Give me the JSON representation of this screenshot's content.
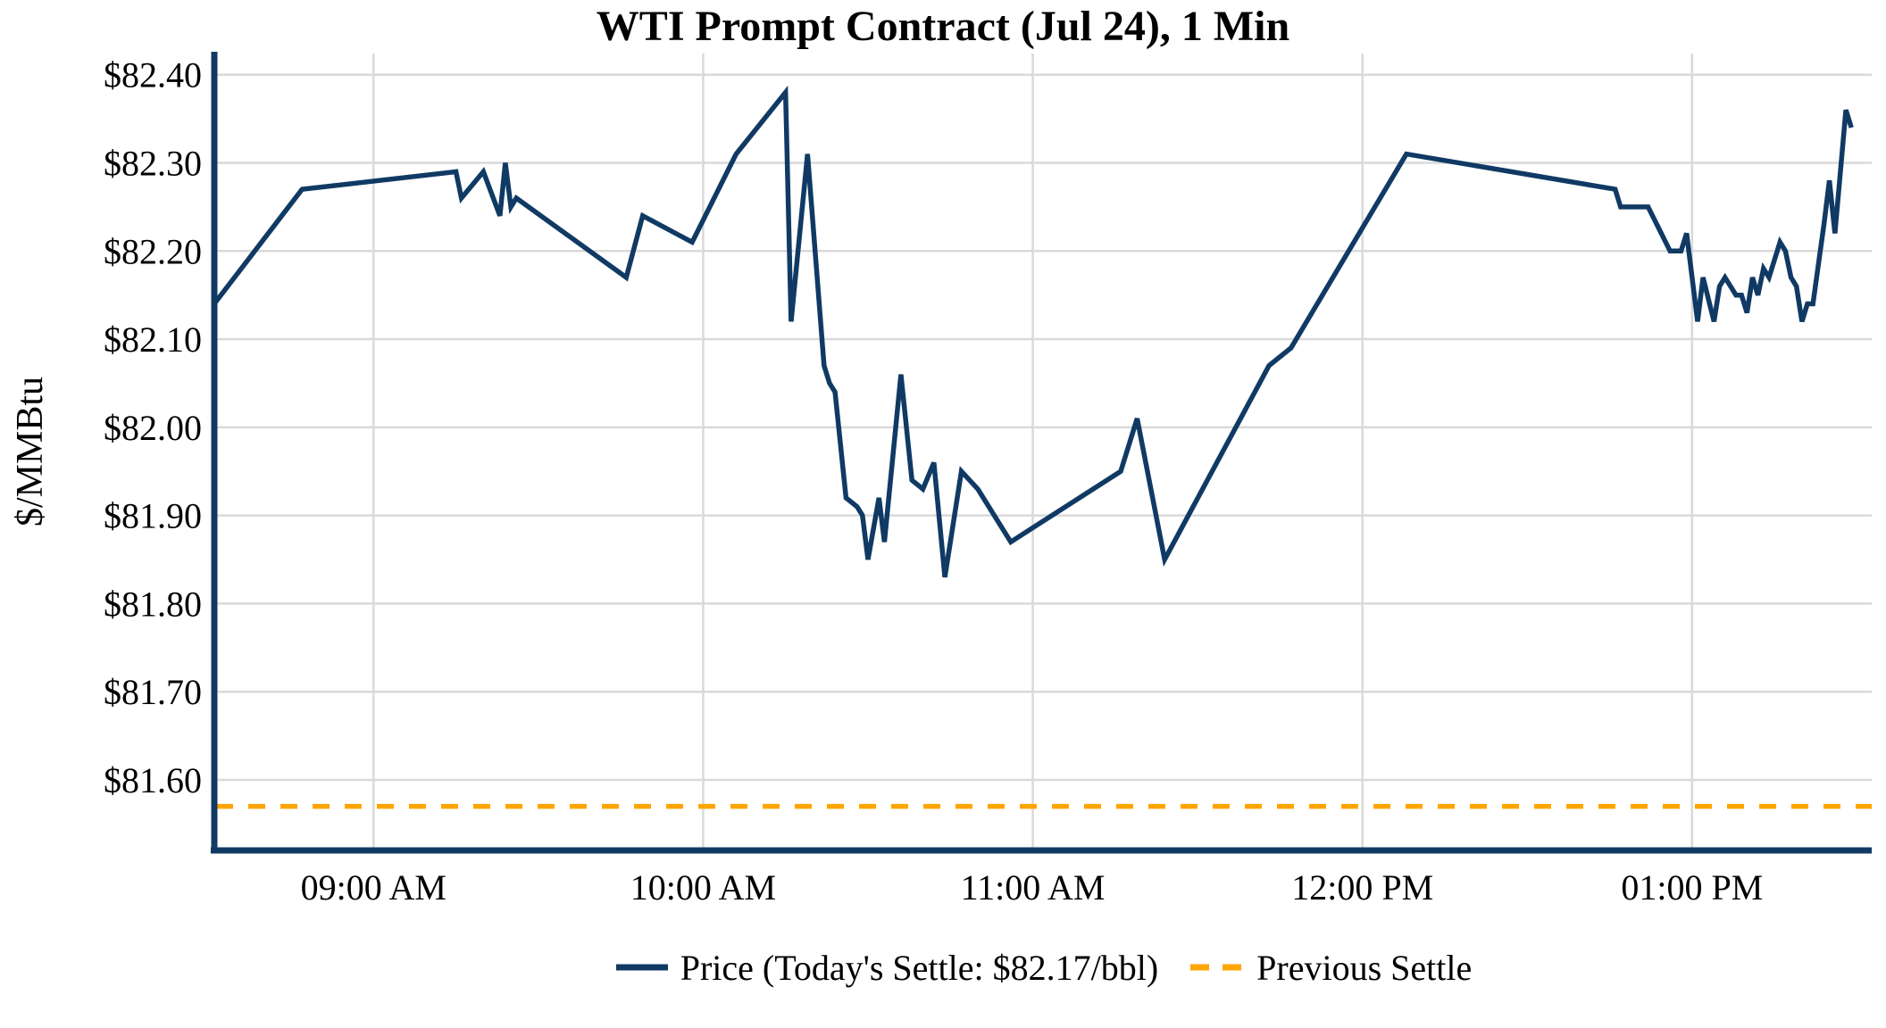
{
  "figure": {
    "title": "WTI Prompt Contract (Jul 24), 1 Min",
    "y_axis_label": "$/MMBtu"
  },
  "legend": {
    "price_label": "Price (Today's Settle: $82.17/bbl)",
    "previous_settle_label": "Previous Settle"
  },
  "colors": {
    "price_line": "#103a64",
    "previous_settle_line": "#ffa500",
    "grid": "#d9d9d9",
    "axis_spine": "#103a64",
    "text": "#000000",
    "background": "#ffffff"
  },
  "chart_data": {
    "type": "line",
    "title": "WTI Prompt Contract (Jul 24), 1 Min",
    "xlabel": "",
    "ylabel": "$/MMBtu",
    "grid": true,
    "legend_position": "bottom",
    "today_settle_per_bbl": 82.17,
    "x_tick_labels": [
      "09:00 AM",
      "10:00 AM",
      "11:00 AM",
      "12:00 PM",
      "01:00 PM"
    ],
    "x_tick_hours": [
      9,
      10,
      11,
      12,
      13
    ],
    "y_tick_labels": [
      "$81.60",
      "$81.70",
      "$81.80",
      "$81.90",
      "$82.00",
      "$82.10",
      "$82.20",
      "$82.30",
      "$82.40"
    ],
    "y_tick_values": [
      81.6,
      81.7,
      81.8,
      81.9,
      82.0,
      82.1,
      82.2,
      82.3,
      82.4
    ],
    "xlim_hours": [
      8.517,
      13.545
    ],
    "ylim": [
      81.52,
      82.424
    ],
    "series": [
      {
        "name": "Price (Today's Settle: $82.17/bbl)",
        "type": "line",
        "style": "solid",
        "color": "#103a64",
        "times": [
          "08:31",
          "08:47",
          "09:15",
          "09:16",
          "09:20",
          "09:23",
          "09:24",
          "09:25",
          "09:26",
          "09:46",
          "09:49",
          "09:58",
          "10:06",
          "10:15",
          "10:16",
          "10:19",
          "10:22",
          "10:23",
          "10:24",
          "10:26",
          "10:28",
          "10:29",
          "10:30",
          "10:32",
          "10:33",
          "10:36",
          "10:38",
          "10:40",
          "10:42",
          "10:44",
          "10:47",
          "10:50",
          "10:56",
          "11:16",
          "11:19",
          "11:24",
          "11:43",
          "11:47",
          "12:08",
          "12:46",
          "12:47",
          "12:52",
          "12:56",
          "12:58",
          "12:59",
          "13:01",
          "13:02",
          "13:04",
          "13:05",
          "13:06",
          "13:07",
          "13:08",
          "13:09",
          "13:10",
          "13:11",
          "13:12",
          "13:13",
          "13:14",
          "13:16",
          "13:17",
          "13:18",
          "13:19",
          "13:20",
          "13:21",
          "13:22",
          "13:24",
          "13:25",
          "13:26",
          "13:28",
          "13:29"
        ],
        "values": [
          82.14,
          82.27,
          82.29,
          82.26,
          82.29,
          82.24,
          82.3,
          82.25,
          82.26,
          82.17,
          82.24,
          82.21,
          82.31,
          82.38,
          82.12,
          82.31,
          82.07,
          82.05,
          82.04,
          81.92,
          81.91,
          81.9,
          81.85,
          81.92,
          81.87,
          82.06,
          81.94,
          81.93,
          81.96,
          81.83,
          81.95,
          81.93,
          81.87,
          81.95,
          82.01,
          81.85,
          82.07,
          82.09,
          82.31,
          82.27,
          82.25,
          82.25,
          82.2,
          82.2,
          82.22,
          82.12,
          82.17,
          82.12,
          82.16,
          82.17,
          82.16,
          82.15,
          82.15,
          82.13,
          82.17,
          82.15,
          82.18,
          82.17,
          82.21,
          82.2,
          82.17,
          82.16,
          82.12,
          82.14,
          82.14,
          82.23,
          82.28,
          82.22,
          82.36,
          82.34
        ]
      },
      {
        "name": "Previous Settle",
        "type": "hline",
        "style": "dashed",
        "color": "#ffa500",
        "value": 81.57
      }
    ]
  }
}
